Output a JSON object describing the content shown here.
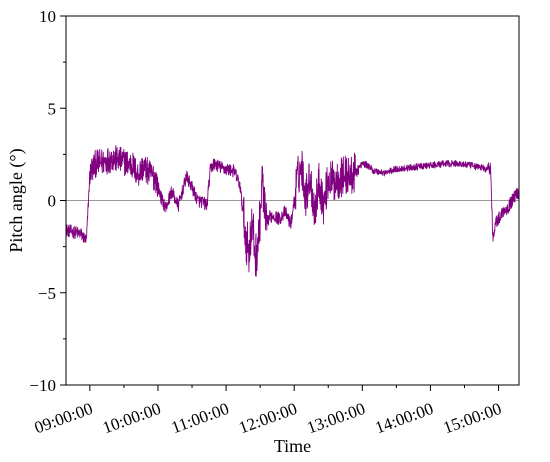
{
  "chart_data": {
    "type": "line",
    "title": "",
    "xlabel": "Time",
    "ylabel": "Pitch angle (°)",
    "xlim": [
      "08:39:00",
      "15:18:00"
    ],
    "ylim": [
      -10,
      10
    ],
    "grid": false,
    "legend": "none",
    "x_ticks": [
      "09:00:00",
      "10:00:00",
      "11:00:00",
      "12:00:00",
      "13:00:00",
      "14:00:00",
      "15:00:00"
    ],
    "y_ticks": [
      -10,
      -5,
      0,
      5,
      10
    ],
    "y_tick_labels": [
      "−10",
      "−5",
      "0",
      "5",
      "10"
    ],
    "reference_line": {
      "y": 0,
      "color": "#9a9a9a"
    },
    "series": [
      {
        "color": "#800080",
        "x": [
          "08:39:00",
          "08:45:00",
          "08:52:00",
          "08:57:00",
          "09:00:00",
          "09:05:00",
          "09:12:00",
          "09:20:00",
          "09:30:00",
          "09:38:00",
          "09:42:00",
          "09:47:00",
          "09:52:00",
          "09:58:00",
          "10:03:00",
          "10:07:00",
          "10:12:00",
          "10:18:00",
          "10:25:00",
          "10:30:00",
          "10:35:00",
          "10:40:00",
          "10:43:00",
          "10:46:00",
          "10:49:00",
          "10:52:00",
          "10:55:00",
          "11:00:00",
          "11:07:00",
          "11:12:00",
          "11:17:00",
          "11:20:00",
          "11:23:00",
          "11:26:00",
          "11:29:00",
          "11:32:00",
          "11:35:00",
          "11:38:00",
          "11:42:00",
          "11:47:00",
          "11:52:00",
          "11:57:00",
          "12:03:00",
          "12:07:00",
          "12:10:00",
          "12:14:00",
          "12:18:00",
          "12:22:00",
          "12:26:00",
          "12:30:00",
          "12:35:00",
          "12:40:00",
          "12:45:00",
          "12:50:00",
          "12:55:00",
          "13:00:00",
          "13:05:00",
          "13:10:00",
          "13:20:00",
          "13:30:00",
          "13:45:00",
          "14:00:00",
          "14:15:00",
          "14:25:00",
          "14:35:00",
          "14:43:00",
          "14:46:00",
          "14:49:00",
          "14:51:00",
          "14:53:00",
          "14:55:00",
          "14:57:00",
          "15:00:00",
          "15:03:00",
          "15:05:00",
          "15:08:00",
          "15:11:00",
          "15:14:00",
          "15:18:00"
        ],
        "y": [
          -1.6,
          -1.7,
          -1.8,
          -2.2,
          1.5,
          2.0,
          2.1,
          2.3,
          2.1,
          1.9,
          1.4,
          1.8,
          1.5,
          1.2,
          0.1,
          -0.4,
          0.5,
          -0.3,
          1.3,
          0.7,
          0.0,
          -0.1,
          -0.3,
          1.6,
          2.0,
          1.9,
          1.8,
          1.7,
          1.6,
          0.9,
          -1.8,
          -2.8,
          -1.3,
          -3.1,
          -1.8,
          1.2,
          -1.4,
          -0.9,
          -0.8,
          -1.0,
          -0.6,
          -1.3,
          1.3,
          1.8,
          0.2,
          1.3,
          -0.6,
          1.1,
          -0.3,
          1.2,
          1.0,
          1.2,
          1.4,
          1.3,
          1.6,
          2.0,
          1.9,
          1.6,
          1.5,
          1.7,
          1.8,
          1.9,
          2.0,
          2.0,
          1.9,
          1.8,
          1.8,
          1.6,
          1.9,
          1.7,
          -2.1,
          -1.2,
          -1.0,
          -0.7,
          -0.5,
          -0.4,
          -0.1,
          0.2,
          0.5
        ]
      }
    ]
  }
}
